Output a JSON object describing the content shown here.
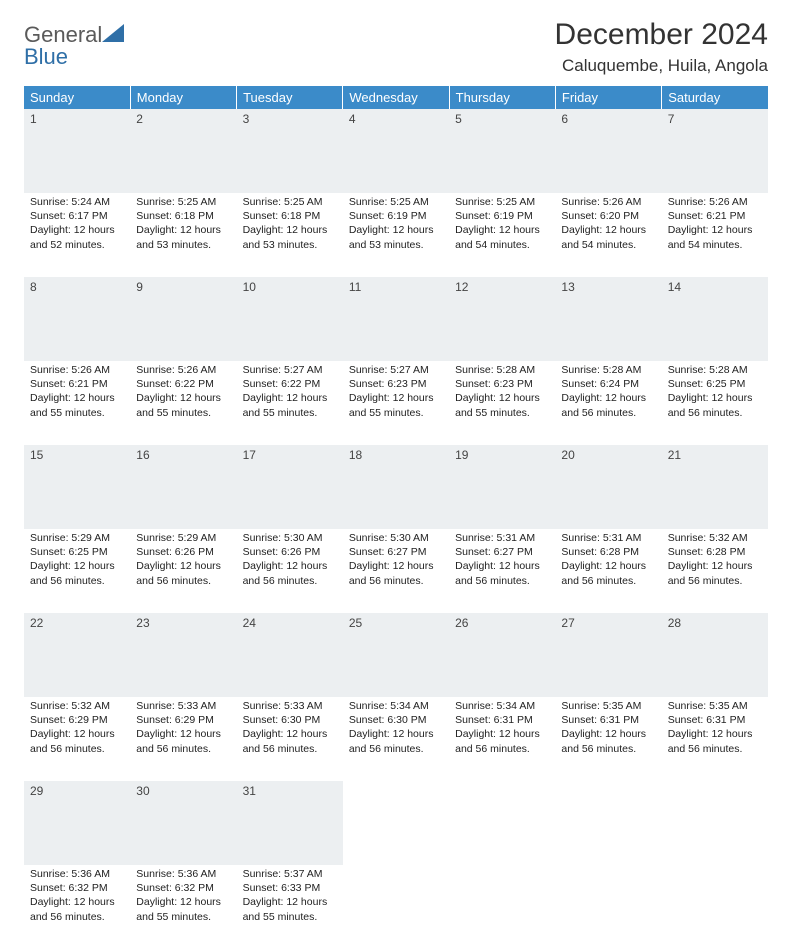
{
  "logo": {
    "word1": "General",
    "word2": "Blue"
  },
  "title": "December 2024",
  "location": "Caluquembe, Huila, Angola",
  "weekdays": [
    "Sunday",
    "Monday",
    "Tuesday",
    "Wednesday",
    "Thursday",
    "Friday",
    "Saturday"
  ],
  "colors": {
    "header_bg": "#3b8bc9",
    "header_text": "#ffffff",
    "daynum_bg": "#eceff1",
    "rule": "#3b6fa0",
    "logo_gray": "#5a5a5a",
    "logo_blue": "#2f6fa7"
  },
  "weeks": [
    [
      {
        "n": "1",
        "sr": "Sunrise: 5:24 AM",
        "ss": "Sunset: 6:17 PM",
        "dl": "Daylight: 12 hours and 52 minutes."
      },
      {
        "n": "2",
        "sr": "Sunrise: 5:25 AM",
        "ss": "Sunset: 6:18 PM",
        "dl": "Daylight: 12 hours and 53 minutes."
      },
      {
        "n": "3",
        "sr": "Sunrise: 5:25 AM",
        "ss": "Sunset: 6:18 PM",
        "dl": "Daylight: 12 hours and 53 minutes."
      },
      {
        "n": "4",
        "sr": "Sunrise: 5:25 AM",
        "ss": "Sunset: 6:19 PM",
        "dl": "Daylight: 12 hours and 53 minutes."
      },
      {
        "n": "5",
        "sr": "Sunrise: 5:25 AM",
        "ss": "Sunset: 6:19 PM",
        "dl": "Daylight: 12 hours and 54 minutes."
      },
      {
        "n": "6",
        "sr": "Sunrise: 5:26 AM",
        "ss": "Sunset: 6:20 PM",
        "dl": "Daylight: 12 hours and 54 minutes."
      },
      {
        "n": "7",
        "sr": "Sunrise: 5:26 AM",
        "ss": "Sunset: 6:21 PM",
        "dl": "Daylight: 12 hours and 54 minutes."
      }
    ],
    [
      {
        "n": "8",
        "sr": "Sunrise: 5:26 AM",
        "ss": "Sunset: 6:21 PM",
        "dl": "Daylight: 12 hours and 55 minutes."
      },
      {
        "n": "9",
        "sr": "Sunrise: 5:26 AM",
        "ss": "Sunset: 6:22 PM",
        "dl": "Daylight: 12 hours and 55 minutes."
      },
      {
        "n": "10",
        "sr": "Sunrise: 5:27 AM",
        "ss": "Sunset: 6:22 PM",
        "dl": "Daylight: 12 hours and 55 minutes."
      },
      {
        "n": "11",
        "sr": "Sunrise: 5:27 AM",
        "ss": "Sunset: 6:23 PM",
        "dl": "Daylight: 12 hours and 55 minutes."
      },
      {
        "n": "12",
        "sr": "Sunrise: 5:28 AM",
        "ss": "Sunset: 6:23 PM",
        "dl": "Daylight: 12 hours and 55 minutes."
      },
      {
        "n": "13",
        "sr": "Sunrise: 5:28 AM",
        "ss": "Sunset: 6:24 PM",
        "dl": "Daylight: 12 hours and 56 minutes."
      },
      {
        "n": "14",
        "sr": "Sunrise: 5:28 AM",
        "ss": "Sunset: 6:25 PM",
        "dl": "Daylight: 12 hours and 56 minutes."
      }
    ],
    [
      {
        "n": "15",
        "sr": "Sunrise: 5:29 AM",
        "ss": "Sunset: 6:25 PM",
        "dl": "Daylight: 12 hours and 56 minutes."
      },
      {
        "n": "16",
        "sr": "Sunrise: 5:29 AM",
        "ss": "Sunset: 6:26 PM",
        "dl": "Daylight: 12 hours and 56 minutes."
      },
      {
        "n": "17",
        "sr": "Sunrise: 5:30 AM",
        "ss": "Sunset: 6:26 PM",
        "dl": "Daylight: 12 hours and 56 minutes."
      },
      {
        "n": "18",
        "sr": "Sunrise: 5:30 AM",
        "ss": "Sunset: 6:27 PM",
        "dl": "Daylight: 12 hours and 56 minutes."
      },
      {
        "n": "19",
        "sr": "Sunrise: 5:31 AM",
        "ss": "Sunset: 6:27 PM",
        "dl": "Daylight: 12 hours and 56 minutes."
      },
      {
        "n": "20",
        "sr": "Sunrise: 5:31 AM",
        "ss": "Sunset: 6:28 PM",
        "dl": "Daylight: 12 hours and 56 minutes."
      },
      {
        "n": "21",
        "sr": "Sunrise: 5:32 AM",
        "ss": "Sunset: 6:28 PM",
        "dl": "Daylight: 12 hours and 56 minutes."
      }
    ],
    [
      {
        "n": "22",
        "sr": "Sunrise: 5:32 AM",
        "ss": "Sunset: 6:29 PM",
        "dl": "Daylight: 12 hours and 56 minutes."
      },
      {
        "n": "23",
        "sr": "Sunrise: 5:33 AM",
        "ss": "Sunset: 6:29 PM",
        "dl": "Daylight: 12 hours and 56 minutes."
      },
      {
        "n": "24",
        "sr": "Sunrise: 5:33 AM",
        "ss": "Sunset: 6:30 PM",
        "dl": "Daylight: 12 hours and 56 minutes."
      },
      {
        "n": "25",
        "sr": "Sunrise: 5:34 AM",
        "ss": "Sunset: 6:30 PM",
        "dl": "Daylight: 12 hours and 56 minutes."
      },
      {
        "n": "26",
        "sr": "Sunrise: 5:34 AM",
        "ss": "Sunset: 6:31 PM",
        "dl": "Daylight: 12 hours and 56 minutes."
      },
      {
        "n": "27",
        "sr": "Sunrise: 5:35 AM",
        "ss": "Sunset: 6:31 PM",
        "dl": "Daylight: 12 hours and 56 minutes."
      },
      {
        "n": "28",
        "sr": "Sunrise: 5:35 AM",
        "ss": "Sunset: 6:31 PM",
        "dl": "Daylight: 12 hours and 56 minutes."
      }
    ],
    [
      {
        "n": "29",
        "sr": "Sunrise: 5:36 AM",
        "ss": "Sunset: 6:32 PM",
        "dl": "Daylight: 12 hours and 56 minutes."
      },
      {
        "n": "30",
        "sr": "Sunrise: 5:36 AM",
        "ss": "Sunset: 6:32 PM",
        "dl": "Daylight: 12 hours and 55 minutes."
      },
      {
        "n": "31",
        "sr": "Sunrise: 5:37 AM",
        "ss": "Sunset: 6:33 PM",
        "dl": "Daylight: 12 hours and 55 minutes."
      },
      null,
      null,
      null,
      null
    ]
  ]
}
